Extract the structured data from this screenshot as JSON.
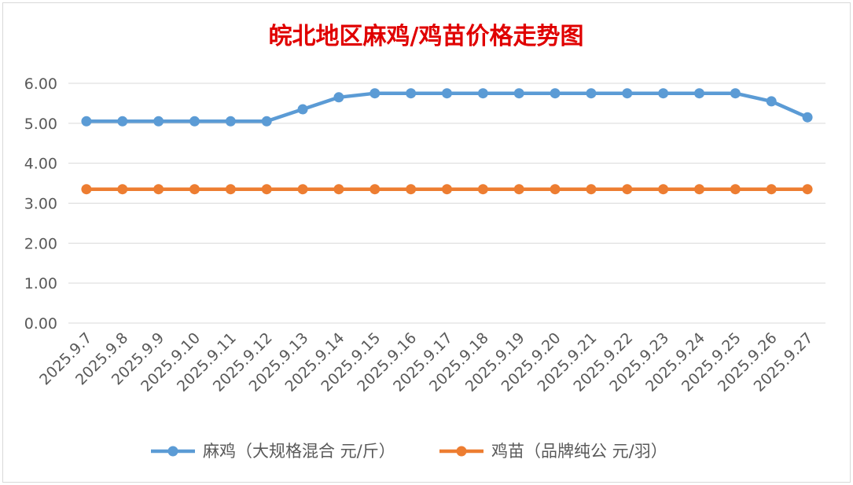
{
  "chart_data": {
    "type": "line",
    "title": "皖北地区麻鸡/鸡苗价格走势图",
    "categories": [
      "2025.9.7",
      "2025.9.8",
      "2025.9.9",
      "2025.9.10",
      "2025.9.11",
      "2025.9.12",
      "2025.9.13",
      "2025.9.14",
      "2025.9.15",
      "2025.9.16",
      "2025.9.17",
      "2025.9.18",
      "2025.9.19",
      "2025.9.20",
      "2025.9.21",
      "2025.9.22",
      "2025.9.23",
      "2025.9.24",
      "2025.9.25",
      "2025.9.26",
      "2025.9.27"
    ],
    "y_ticks": [
      "0.00",
      "1.00",
      "2.00",
      "3.00",
      "4.00",
      "5.00",
      "6.00"
    ],
    "ylim": [
      0,
      6
    ],
    "grid": true,
    "legend_position": "bottom",
    "series": [
      {
        "name": "麻鸡（大规格混合 元/斤）",
        "color": "#5b9bd5",
        "values": [
          5.05,
          5.05,
          5.05,
          5.05,
          5.05,
          5.05,
          5.35,
          5.65,
          5.75,
          5.75,
          5.75,
          5.75,
          5.75,
          5.75,
          5.75,
          5.75,
          5.75,
          5.75,
          5.75,
          5.55,
          5.15
        ]
      },
      {
        "name": "鸡苗（品牌纯公 元/羽）",
        "color": "#ed7d31",
        "values": [
          3.35,
          3.35,
          3.35,
          3.35,
          3.35,
          3.35,
          3.35,
          3.35,
          3.35,
          3.35,
          3.35,
          3.35,
          3.35,
          3.35,
          3.35,
          3.35,
          3.35,
          3.35,
          3.35,
          3.35,
          3.35
        ]
      }
    ]
  }
}
